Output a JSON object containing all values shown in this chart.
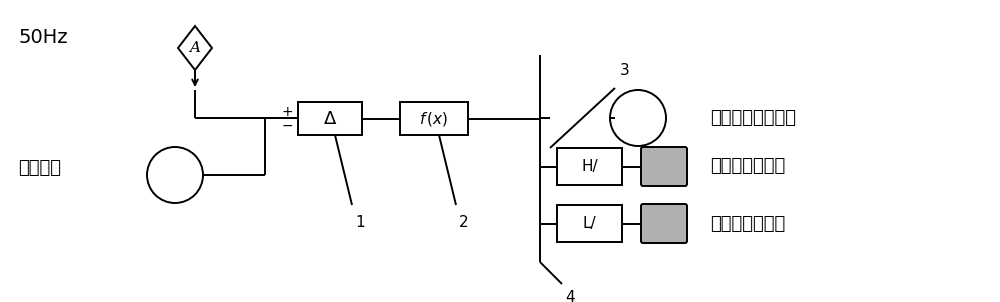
{
  "bg_color": "#ffffff",
  "line_color": "#000000",
  "gray_fill": "#b0b0b0",
  "label_50hz": "50Hz",
  "label_grid": "电网频率",
  "label_1": "1",
  "label_2": "2",
  "label_3": "3",
  "label_4": "4",
  "label_delta": "Δ",
  "label_H": "H/",
  "label_L": "L/",
  "label_cmd": "调频负荷需求指令",
  "label_inc": "调频增负荷动作",
  "label_dec": "调频减负荷动作",
  "font_size_50hz": 14,
  "font_size_grid": 13,
  "font_size_label": 13,
  "font_size_num": 11,
  "font_size_box": 12
}
